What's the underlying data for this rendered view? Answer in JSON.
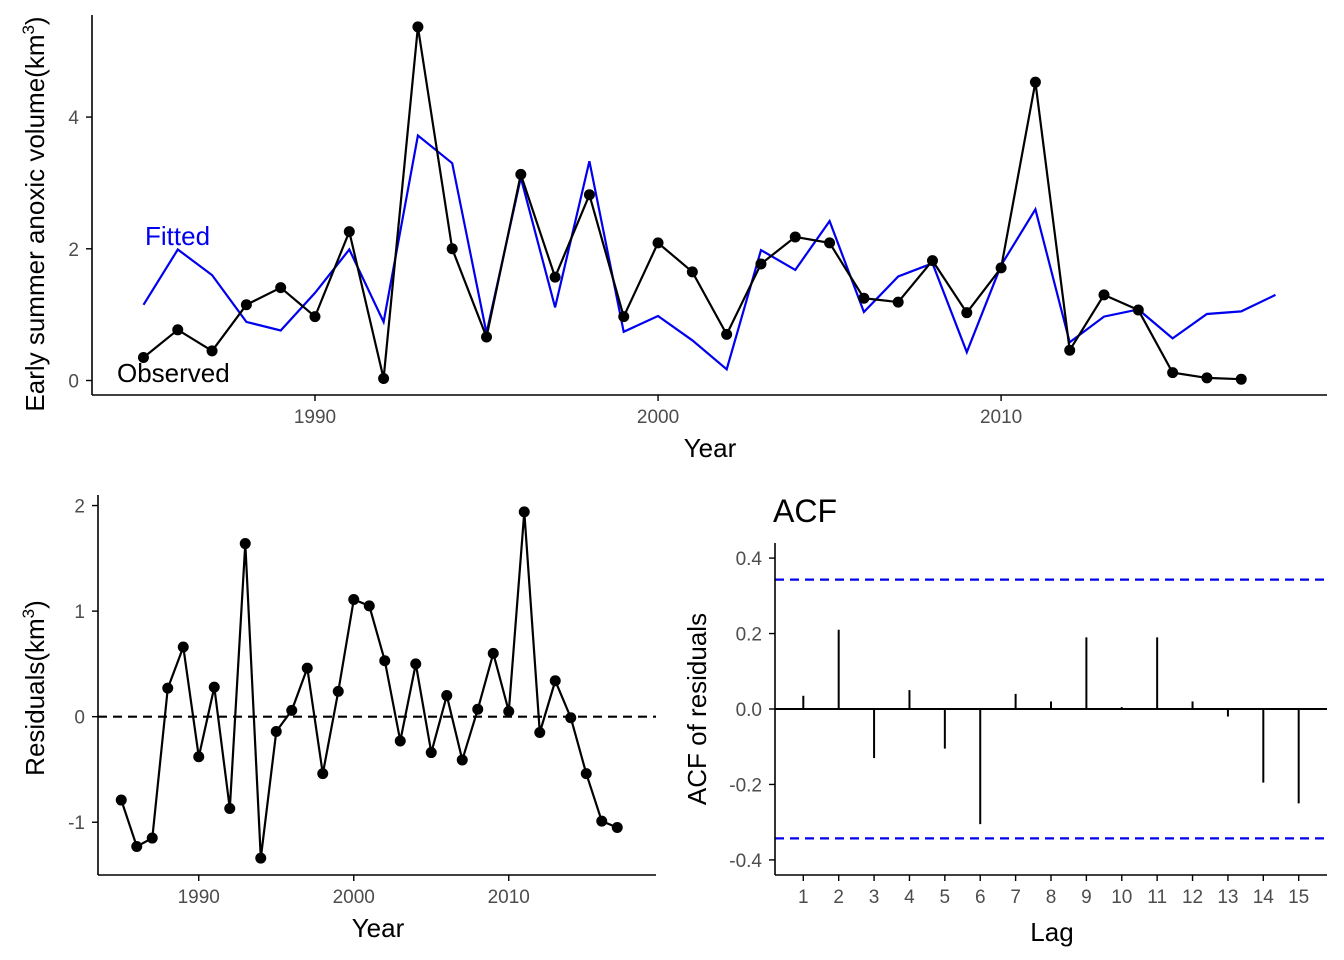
{
  "colors": {
    "observed": "#000000",
    "fitted": "#0000EE",
    "ci": "#0000EE",
    "axis": "#000000",
    "tick_text": "#4d4d4d"
  },
  "chart_data": [
    {
      "type": "line",
      "xlabel": "Year",
      "ylabel": "Early summer anoxic volume(km",
      "ylabel_sup": "3",
      "ylabel_close": ")",
      "xticks": [
        1990,
        2000,
        2010
      ],
      "yticks": [
        0,
        2,
        4
      ],
      "xlim": [
        1983.5,
        2019.5
      ],
      "ylim": [
        -0.22,
        5.55
      ],
      "annotations": {
        "fitted": "Fitted",
        "observed": "Observed"
      },
      "series": [
        {
          "name": "Observed",
          "x": [
            1985,
            1986,
            1987,
            1988,
            1989,
            1990,
            1991,
            1992,
            1993,
            1994,
            1995,
            1996,
            1997,
            1998,
            1999,
            2000,
            2001,
            2002,
            2003,
            2004,
            2005,
            2006,
            2007,
            2008,
            2009,
            2010,
            2011,
            2012,
            2013,
            2014,
            2015,
            2016,
            2017
          ],
          "values": [
            0.35,
            0.77,
            0.45,
            1.15,
            1.41,
            0.97,
            2.26,
            0.03,
            5.37,
            2.0,
            0.66,
            3.13,
            1.57,
            2.82,
            0.97,
            2.09,
            1.65,
            0.7,
            1.77,
            2.18,
            2.09,
            1.25,
            1.19,
            1.82,
            1.03,
            1.71,
            4.53,
            0.46,
            1.3,
            1.07,
            0.12,
            0.04,
            0.02
          ]
        },
        {
          "name": "Fitted",
          "x": [
            1985,
            1986,
            1987,
            1988,
            1989,
            1990,
            1991,
            1992,
            1993,
            1994,
            1995,
            1996,
            1997,
            1998,
            1999,
            2000,
            2001,
            2002,
            2003,
            2004,
            2005,
            2006,
            2007,
            2008,
            2009,
            2010,
            2011,
            2012,
            2013,
            2014,
            2015,
            2016,
            2017,
            2018
          ],
          "values": [
            1.15,
            1.99,
            1.6,
            0.89,
            0.76,
            1.33,
            1.99,
            0.89,
            3.72,
            3.3,
            0.72,
            3.08,
            1.11,
            3.33,
            0.74,
            0.98,
            0.61,
            0.17,
            1.98,
            1.68,
            2.42,
            1.04,
            1.58,
            1.78,
            0.43,
            1.75,
            2.6,
            0.58,
            0.97,
            1.08,
            0.64,
            1.01,
            1.05,
            1.3
          ]
        }
      ]
    },
    {
      "type": "line",
      "xlabel": "Year",
      "ylabel": "Residuals(km",
      "ylabel_sup": "3",
      "ylabel_close": ")",
      "xticks": [
        1990,
        2000,
        2010
      ],
      "yticks": [
        -1,
        0,
        1,
        2
      ],
      "ytick_labels": [
        "-1",
        "0",
        "1",
        "2"
      ],
      "xlim": [
        1983.5,
        2019.5
      ],
      "ylim": [
        -1.5,
        2.1
      ],
      "reference_line": 0,
      "series": [
        {
          "name": "Residuals",
          "x": [
            1985,
            1986,
            1987,
            1988,
            1989,
            1990,
            1991,
            1992,
            1993,
            1994,
            1995,
            1996,
            1997,
            1998,
            1999,
            2000,
            2001,
            2002,
            2003,
            2004,
            2005,
            2006,
            2007,
            2008,
            2009,
            2010,
            2011,
            2012,
            2013,
            2014,
            2015,
            2016,
            2017
          ],
          "values": [
            -0.79,
            -1.23,
            -1.15,
            0.27,
            0.66,
            -0.38,
            0.28,
            -0.87,
            1.64,
            -1.34,
            -0.14,
            0.06,
            0.46,
            -0.54,
            0.24,
            1.11,
            1.05,
            0.53,
            -0.23,
            0.5,
            -0.34,
            0.2,
            -0.41,
            0.07,
            0.6,
            0.05,
            1.94,
            -0.15,
            0.34,
            -0.01,
            -0.54,
            -0.99,
            -1.05
          ]
        }
      ]
    },
    {
      "type": "bar",
      "title": "ACF",
      "xlabel": "Lag",
      "ylabel": "ACF of residuals",
      "categories": [
        "1",
        "2",
        "3",
        "4",
        "5",
        "6",
        "7",
        "8",
        "9",
        "10",
        "11",
        "12",
        "13",
        "14",
        "15"
      ],
      "values": [
        0.035,
        0.21,
        -0.13,
        0.05,
        -0.105,
        -0.305,
        0.04,
        0.02,
        0.19,
        0.005,
        0.19,
        0.02,
        -0.02,
        -0.195,
        -0.25
      ],
      "yticks": [
        -0.4,
        -0.2,
        0.0,
        0.2,
        0.4
      ],
      "ytick_labels": [
        "-0.4",
        "-0.2",
        "0.0",
        "0.2",
        "0.4"
      ],
      "ylim": [
        -0.44,
        0.44
      ],
      "confidence_bounds": [
        0.343,
        -0.343
      ]
    }
  ]
}
